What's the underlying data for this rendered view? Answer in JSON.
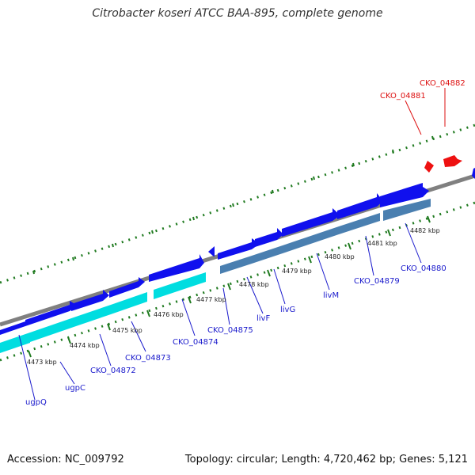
{
  "title": "Citrobacter koseri ATCC BAA-895, complete genome",
  "footer": {
    "accession": "Accession: NC_009792",
    "stats": "Topology: circular; Length: 4,720,462 bp; Genes: 5,121"
  },
  "colors": {
    "backbone": "#808080",
    "gene_blue": "#1010ee",
    "gene_steel": "#4a7fb0",
    "gene_cyan": "#00dde0",
    "gene_red": "#ee1111",
    "tick_green": "#1f7a1f",
    "label_blue": "#1a1acc",
    "label_red": "#dd1111"
  },
  "ticks": [
    {
      "label": "4473 kbp",
      "kbp": 4473
    },
    {
      "label": "4474 kbp",
      "kbp": 4474
    },
    {
      "label": "4475 kbp",
      "kbp": 4475
    },
    {
      "label": "4476 kbp",
      "kbp": 4476
    },
    {
      "label": "4477 kbp",
      "kbp": 4477
    },
    {
      "label": "4478 kbp",
      "kbp": 4478
    },
    {
      "label": "4479 kbp",
      "kbp": 4479
    },
    {
      "label": "4480 kbp",
      "kbp": 4480
    },
    {
      "label": "4481 kbp",
      "kbp": 4481
    },
    {
      "label": "4482 kbp",
      "kbp": 4482
    }
  ],
  "genes": [
    {
      "name": "ugpQ",
      "strand": "forward",
      "color": "blue"
    },
    {
      "name": "ugpC",
      "strand": "forward",
      "color": "blue"
    },
    {
      "name": "CKO_04872",
      "strand": "forward",
      "color": "blue"
    },
    {
      "name": "CKO_04873",
      "strand": "forward",
      "color": "blue"
    },
    {
      "name": "CKO_04874",
      "strand": "forward",
      "color": "blue"
    },
    {
      "name": "CKO_04875",
      "strand": "reverse",
      "color": "blue"
    },
    {
      "name": "livF",
      "strand": "forward",
      "color": "blue"
    },
    {
      "name": "livG",
      "strand": "forward",
      "color": "blue"
    },
    {
      "name": "livM",
      "strand": "forward",
      "color": "blue"
    },
    {
      "name": "CKO_04879",
      "strand": "forward",
      "color": "blue"
    },
    {
      "name": "CKO_04880",
      "strand": "forward",
      "color": "blue"
    },
    {
      "name": "CKO_04881",
      "strand": "forward",
      "color": "red"
    },
    {
      "name": "CKO_04882",
      "strand": "forward",
      "color": "red"
    }
  ]
}
